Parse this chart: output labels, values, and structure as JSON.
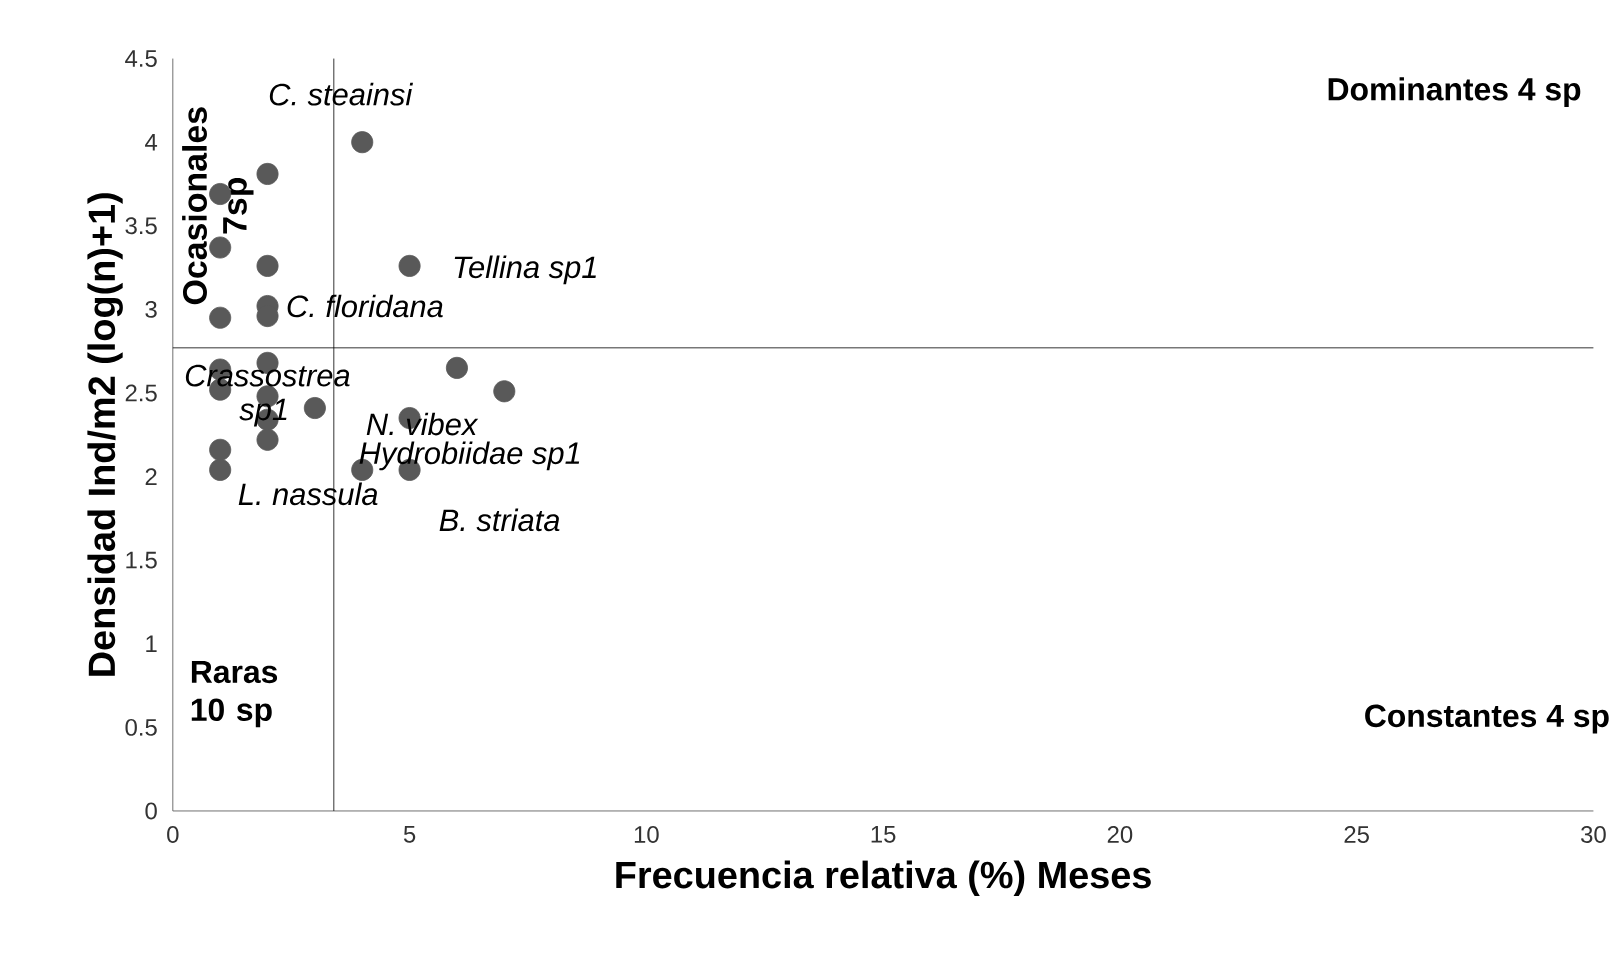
{
  "chart_data": {
    "type": "scatter",
    "xlabel": "Frecuencia relativa (%) Meses",
    "ylabel": "Densidad Ind/m2 (log(n)+1)",
    "x": [
      4,
      2,
      1,
      1,
      2,
      5,
      2,
      2,
      1,
      2,
      1,
      6,
      7,
      1,
      2,
      3,
      2,
      5,
      2,
      1,
      1,
      4,
      5
    ],
    "values": [
      4.0,
      3.81,
      3.69,
      3.37,
      3.26,
      3.26,
      3.02,
      2.96,
      2.95,
      2.68,
      2.64,
      2.65,
      2.51,
      2.52,
      2.48,
      2.41,
      2.34,
      2.35,
      2.22,
      2.16,
      2.04,
      2.04,
      2.04
    ],
    "color": "#595959",
    "marker": "circle",
    "xlim": [
      0,
      30
    ],
    "ylim": [
      0,
      4.5
    ],
    "xticks": [
      0,
      5,
      10,
      15,
      20,
      25,
      30
    ],
    "yticks": [
      0,
      0.5,
      1,
      1.5,
      2,
      2.5,
      3,
      3.5,
      4,
      4.5
    ],
    "grid": false,
    "ref_lines": [
      {
        "axis": "x",
        "value": 3.4,
        "color": "#000000"
      },
      {
        "axis": "y",
        "value": 2.77,
        "color": "#000000"
      }
    ],
    "annotations": [
      "Dominantes 4 sp",
      "Constantes 4 sp",
      "Raras 10 sp",
      "Ocasionales 7sp",
      {
        "text": "C. steainsi",
        "x": 4,
        "y": 4.0
      },
      {
        "text": "Tellina sp1",
        "x": 5,
        "y": 3.26
      },
      {
        "text": "C. floridana",
        "x": 2,
        "y": 3.02
      },
      {
        "text": "Crassostrea sp1",
        "x": 1,
        "y": 2.64
      },
      {
        "text": "N. vibex",
        "x": 5,
        "y": 2.35
      },
      {
        "text": "Hydrobiidae sp1",
        "x": 4,
        "y": 2.04
      },
      {
        "text": "L. nassula",
        "x": 1,
        "y": 2.04
      },
      {
        "text": "B. striata",
        "x": 5,
        "y": 2.04
      }
    ]
  }
}
